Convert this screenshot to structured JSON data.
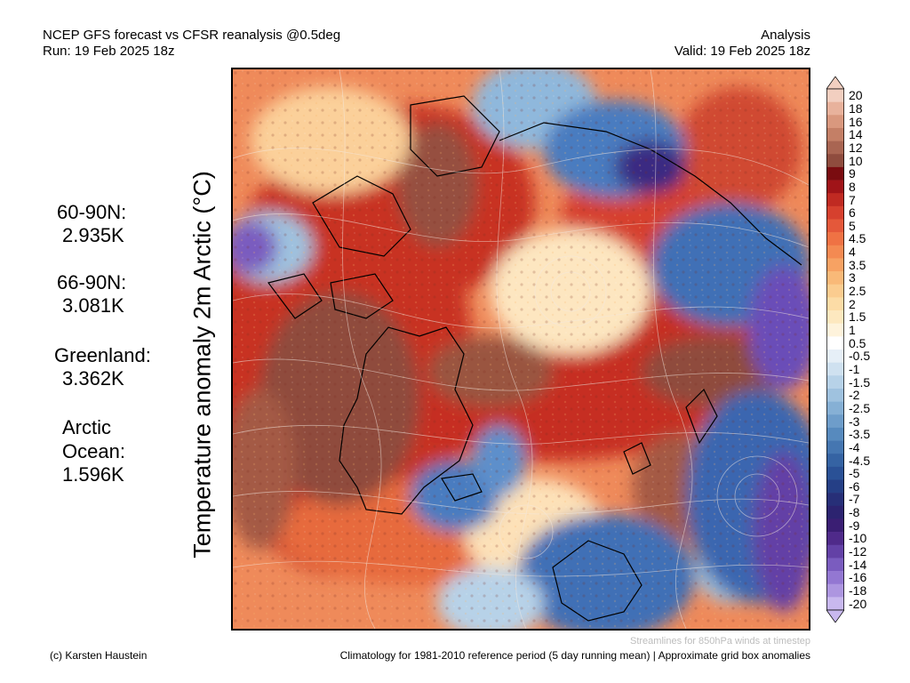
{
  "header": {
    "title": "NCEP GFS forecast vs CFSR reanalysis @0.5deg",
    "run": "Run: 19 Feb 2025 18z",
    "mode": "Analysis",
    "valid": "Valid: 19 Feb 2025 18z"
  },
  "y_axis_label": "Temperature anomaly 2m Arctic (°C)",
  "stats": [
    {
      "region": "60-90N:",
      "value": "2.935K"
    },
    {
      "region": "66-90N:",
      "value": "3.081K"
    },
    {
      "region": "Greenland:",
      "value": "3.362K"
    },
    {
      "region_line1": "Arctic",
      "region_line2": "Ocean:",
      "value": "1.596K"
    }
  ],
  "colorbar": {
    "labels": [
      "20",
      "18",
      "16",
      "14",
      "12",
      "10",
      "9",
      "8",
      "7",
      "6",
      "5",
      "4.5",
      "4",
      "3.5",
      "3",
      "2.5",
      "2",
      "1.5",
      "1",
      "0.5",
      "-0.5",
      "-1",
      "-1.5",
      "-2",
      "-2.5",
      "-3",
      "-3.5",
      "-4",
      "-4.5",
      "-5",
      "-6",
      "-7",
      "-8",
      "-9",
      "-10",
      "-12",
      "-14",
      "-16",
      "-18",
      "-20"
    ],
    "colors": [
      "#f2cfc0",
      "#e8b29c",
      "#d9987e",
      "#c47f66",
      "#a96552",
      "#8f4c3e",
      "#7a0c10",
      "#a01418",
      "#c02a22",
      "#d6402e",
      "#e4583a",
      "#ef7244",
      "#f48a52",
      "#f7a263",
      "#f9b978",
      "#fbcc8f",
      "#fcdca6",
      "#fde8bf",
      "#fef3dc",
      "#ffffff",
      "#e6eff7",
      "#cfe1f0",
      "#b7d2e8",
      "#9fc2df",
      "#86b0d5",
      "#6e9dca",
      "#578abe",
      "#4576b1",
      "#3563a3",
      "#2a5196",
      "#253f86",
      "#272f78",
      "#2c2370",
      "#3a1e73",
      "#4f2a8a",
      "#6341a6",
      "#7a5cbf",
      "#9377d2",
      "#ad96e0",
      "#c8b8ee"
    ]
  },
  "footer": {
    "credit": "(c) Karsten Haustein",
    "streamlines_note": "Streamlines for 850hPa winds at timestep",
    "climatology": "Climatology for 1981-2010 reference period (5 day running mean) | Approximate grid box anomalies"
  }
}
